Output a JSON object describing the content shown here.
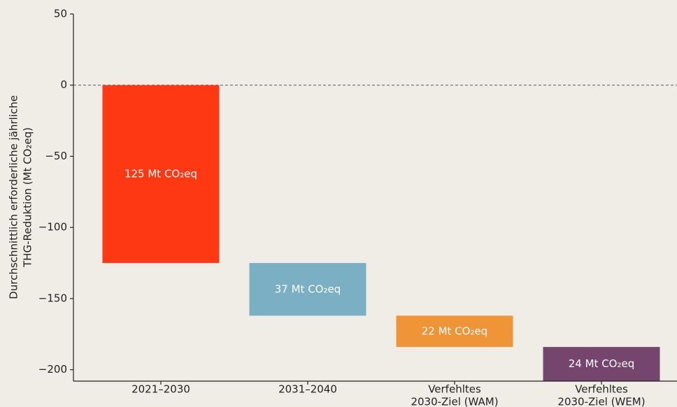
{
  "chart_data": {
    "type": "waterfall",
    "ylabel": [
      "Durchschnittlich erforderliche jährliche",
      "THG-Reduktion (Mt CO₂eq)"
    ],
    "categories": [
      [
        "2021–2030"
      ],
      [
        "2031–2040"
      ],
      [
        "Verfehltes",
        "2030-Ziel (WAM)"
      ],
      [
        "Verfehltes",
        "2030-Ziel (WEM)"
      ]
    ],
    "values": [
      -125,
      -37,
      -22,
      -24
    ],
    "value_labels": [
      "125 Mt CO₂eq",
      "37 Mt CO₂eq",
      "22 Mt CO₂eq",
      "24 Mt CO₂eq"
    ],
    "colors": [
      "#ff3814",
      "#7aafc4",
      "#f09537",
      "#75456e"
    ],
    "ylim": [
      -208,
      50
    ],
    "yticks": [
      50,
      0,
      {
        "value": -50,
        "label": "−50"
      },
      {
        "value": -100,
        "label": "−100"
      },
      {
        "value": -150,
        "label": "−150"
      },
      {
        "value": -200,
        "label": "−200"
      }
    ],
    "reference_line": 0
  }
}
